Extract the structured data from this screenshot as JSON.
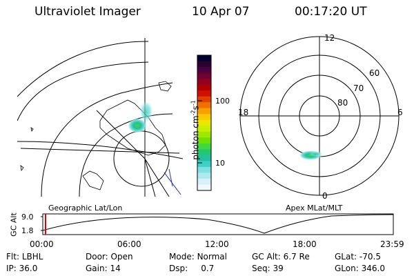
{
  "header": {
    "instrument": "Ultraviolet Imager",
    "date": "10 Apr 07",
    "time": "00:17:20 UT"
  },
  "panels": {
    "left_label": "Geographic Lat/Lon",
    "right_label": "Apex MLat/MLT"
  },
  "colorbar": {
    "label_main": "photon cm",
    "label_exp1": "-2",
    "label_mid": "s",
    "label_exp2": "-1",
    "ticks": [
      "100",
      "10"
    ],
    "colors": [
      "#000030",
      "#2a0030",
      "#4a0040",
      "#700030",
      "#900020",
      "#b00000",
      "#d01000",
      "#e04000",
      "#f07000",
      "#f8a000",
      "#f8c800",
      "#e8e800",
      "#c8f000",
      "#a0e800",
      "#70e000",
      "#40d840",
      "#20c870",
      "#20c0a0",
      "#40d0c8",
      "#80e0e0",
      "#b0e8f0",
      "#d8f0f8",
      "#f0f8fc"
    ]
  },
  "polar": {
    "mlt_labels": {
      "top": "12",
      "left": "18",
      "right": "6",
      "bottom": "0"
    },
    "lat_labels": [
      "60",
      "70",
      "80"
    ]
  },
  "altitude_panel": {
    "ylabel": "GC Alt",
    "yticks": [
      "9.0",
      "1.8"
    ],
    "xticks": [
      "00:00",
      "06:00",
      "12:00",
      "18:00",
      "23:59"
    ],
    "cursor_color": "#e00000"
  },
  "status": {
    "row1": [
      {
        "label": "Flt:",
        "value": "LBHL"
      },
      {
        "label": "Door:",
        "value": "Open"
      },
      {
        "label": "Mode:",
        "value": "Normal"
      },
      {
        "label": "GC Alt:",
        "value": "6.7 Re"
      },
      {
        "label": "GLat:",
        "value": "-70.5"
      }
    ],
    "row2": [
      {
        "label": "IP:",
        "value": "36.0"
      },
      {
        "label": "Gain:",
        "value": "14"
      },
      {
        "label": "Dsp:",
        "value": "0.7"
      },
      {
        "label": "Seq:",
        "value": "39"
      },
      {
        "label": "GLon:",
        "value": "346.0"
      }
    ]
  }
}
